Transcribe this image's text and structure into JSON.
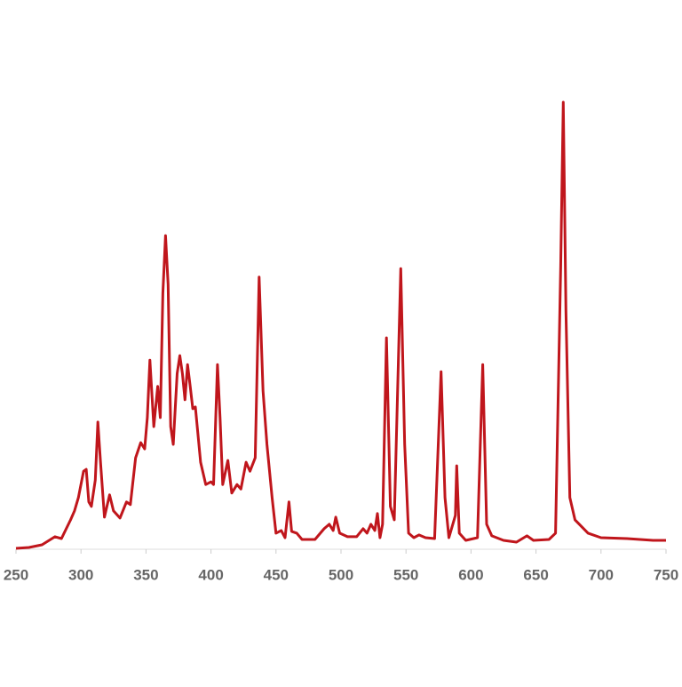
{
  "chart_data": {
    "type": "line",
    "x": [
      250,
      260,
      270,
      280,
      285,
      292,
      295,
      298,
      302,
      304,
      306,
      308,
      311,
      313,
      315,
      318,
      322,
      325,
      330,
      335,
      338,
      342,
      346,
      349,
      351,
      353,
      356,
      359,
      361,
      363,
      365,
      367,
      369,
      371,
      374,
      376,
      378,
      380,
      382,
      384,
      386,
      388,
      392,
      396,
      400,
      402,
      405,
      407,
      409,
      413,
      416,
      420,
      423,
      427,
      430,
      434,
      437,
      440,
      443,
      447,
      450,
      454,
      457,
      460,
      462,
      466,
      470,
      480,
      487,
      491,
      494,
      496,
      499,
      505,
      512,
      517,
      520,
      523,
      526,
      528,
      530,
      532,
      535,
      538,
      541,
      546,
      549,
      552,
      556,
      560,
      565,
      572,
      577,
      580,
      583,
      588,
      589,
      591,
      596,
      605,
      609,
      612,
      616,
      625,
      635,
      643,
      648,
      660,
      665,
      669,
      671,
      673,
      676,
      680,
      690,
      700,
      720,
      740,
      750
    ],
    "series": [
      {
        "color": "#c0161c",
        "values": [
          0,
          0.2,
          0.8,
          2.6,
          2.2,
          6.4,
          8.4,
          11.4,
          17.3,
          17.7,
          10.4,
          9.4,
          15.3,
          28.3,
          19.3,
          7,
          12,
          8.4,
          6.8,
          10.4,
          9.8,
          20.3,
          23.7,
          22.3,
          29.3,
          42.2,
          27.3,
          36.3,
          29.3,
          57.2,
          70.1,
          59.2,
          27.3,
          23.3,
          39.2,
          43.2,
          39.2,
          33.3,
          41.2,
          36.3,
          31.3,
          31.7,
          19.3,
          14.3,
          14.9,
          14.3,
          41.2,
          29.3,
          14.3,
          19.7,
          12.4,
          14.3,
          13.3,
          19.3,
          17.3,
          20.3,
          60.8,
          35.3,
          23.3,
          11.4,
          3.4,
          4,
          2.4,
          10.4,
          3.8,
          3.4,
          2,
          2,
          4.4,
          5.4,
          4,
          7,
          3.4,
          2.6,
          2.6,
          4.4,
          3.4,
          5.4,
          4,
          7.8,
          2.4,
          5.4,
          47.2,
          9.4,
          6.4,
          62.7,
          23.3,
          3.4,
          2.4,
          3,
          2.4,
          2.2,
          39.6,
          11.4,
          2.4,
          7.4,
          18.5,
          3.4,
          1.8,
          2.4,
          41.2,
          5.4,
          2.8,
          1.8,
          1.4,
          2.8,
          1.8,
          2,
          3.4,
          63.1,
          100,
          53.2,
          11.4,
          6.4,
          3.4,
          2.4,
          2.2,
          1.8,
          1.8
        ]
      }
    ],
    "xlim": [
      250,
      750
    ],
    "xticks": [
      250,
      300,
      350,
      400,
      450,
      500,
      550,
      600,
      650,
      700,
      750
    ],
    "ylim": [
      0,
      100
    ]
  }
}
